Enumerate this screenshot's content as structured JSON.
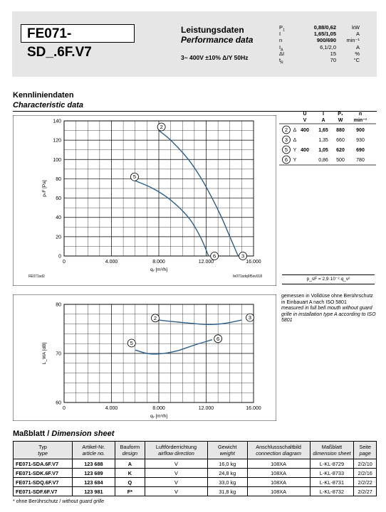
{
  "header": {
    "model": "FE071-SD_.6F.V7",
    "title_de": "Leistungsdaten",
    "title_en": "Performance data",
    "voltage": "3~ 400V ±10% Δ/Y 50Hz",
    "params": [
      {
        "symbol": "P",
        "sub": "1",
        "value": "0,88/0,62",
        "unit": "kW"
      },
      {
        "symbol": "I",
        "sub": "",
        "value": "1,65/1,05",
        "unit": "A"
      },
      {
        "symbol": "n",
        "sub": "",
        "value": "900/690",
        "unit": "min⁻¹"
      },
      {
        "symbol": "I",
        "sub": "A",
        "value": "6,1/2,0",
        "value_bold": false,
        "unit": "A"
      },
      {
        "symbol": "ΔI",
        "sub": "",
        "value": "15",
        "value_bold": false,
        "unit": "%"
      },
      {
        "symbol": "t",
        "sub": "R",
        "value": "70",
        "value_bold": false,
        "unit": "°C"
      }
    ]
  },
  "section1": {
    "title_de": "Kennliniendaten",
    "title_en": "Characteristic data"
  },
  "chart_data": [
    {
      "type": "line",
      "ylabel": "pₛF [Pa]",
      "xlabel": "qᵥ [m³/h]",
      "xlim": [
        0,
        16000
      ],
      "ylim": [
        0,
        140
      ],
      "xticks": [
        "0",
        "4.000",
        "8.000",
        "12.000",
        "16.000"
      ],
      "yticks": [
        "0",
        "20",
        "40",
        "60",
        "80",
        "100",
        "120",
        "140"
      ],
      "footnote_left": "FE071sd2",
      "footnote_right": "fe071sdq6f5xv018",
      "series": [
        {
          "name": "2",
          "points": [
            [
              8000,
              130
            ],
            [
              9000,
              120
            ],
            [
              10500,
              100
            ],
            [
              11600,
              80
            ],
            [
              12500,
              60
            ],
            [
              13300,
              40
            ],
            [
              14000,
              20
            ],
            [
              14700,
              0
            ]
          ]
        },
        {
          "name": "5",
          "points": [
            [
              6000,
              78
            ],
            [
              7500,
              70
            ],
            [
              9000,
              58
            ],
            [
              10500,
              40
            ],
            [
              11500,
              20
            ],
            [
              12200,
              0
            ]
          ]
        },
        {
          "name": "3",
          "points": [
            [
              14700,
              0
            ]
          ]
        },
        {
          "name": "6",
          "points": [
            [
              12200,
              0
            ]
          ]
        }
      ]
    },
    {
      "type": "line",
      "ylabel": "L_WA [dB]",
      "xlabel": "qᵥ [m³/h]",
      "xlim": [
        0,
        16000
      ],
      "ylim": [
        60,
        80
      ],
      "xticks": [
        "0",
        "4.000",
        "8.000",
        "12.000",
        "16.000"
      ],
      "yticks": [
        "60",
        "70",
        "80"
      ],
      "series": [
        {
          "name": "2",
          "points": [
            [
              8000,
              76.8
            ],
            [
              10000,
              76.3
            ],
            [
              12000,
              75.9
            ],
            [
              13500,
              76.1
            ],
            [
              15000,
              76.8
            ]
          ]
        },
        {
          "name": "5",
          "points": [
            [
              6000,
              70.7
            ],
            [
              7000,
              70.0
            ],
            [
              8000,
              69.9
            ],
            [
              9500,
              70.5
            ],
            [
              11000,
              71.7
            ],
            [
              12500,
              72.8
            ]
          ]
        }
      ]
    }
  ],
  "labels": [
    {
      "id": "2",
      "label": "2"
    },
    {
      "id": "3",
      "label": "3"
    },
    {
      "id": "5",
      "label": "5"
    },
    {
      "id": "6",
      "label": "6"
    }
  ],
  "optable": {
    "headers": [
      "U",
      "I",
      "P₁",
      "n"
    ],
    "units": [
      "V",
      "A",
      "W",
      "min⁻¹"
    ],
    "rows": [
      {
        "id": "2",
        "conn": "Δ",
        "U": "400",
        "I": "1,65",
        "P": "880",
        "n": "900",
        "bold": true
      },
      {
        "id": "3",
        "conn": "Δ",
        "U": "",
        "I": "1,35",
        "P": "660",
        "n": "930",
        "bold": false
      },
      {
        "id": "5",
        "conn": "Y",
        "U": "400",
        "I": "1,05",
        "P": "620",
        "n": "690",
        "bold": true
      },
      {
        "id": "6",
        "conn": "Y",
        "U": "",
        "I": "0,86",
        "P": "500",
        "n": "780",
        "bold": false
      }
    ]
  },
  "formula": "p_sF = 2,9·10⁻²·q_v²",
  "measure_note": {
    "de": "gemessen in Volldüse ohne Berührschutz in Einbauart A nach ISO 5801",
    "en": "measured in full bell mouth without guard grille in installation type A according to ISO 5801"
  },
  "section2": {
    "title_de": "Maßblatt / ",
    "title_en": "Dimension sheet"
  },
  "dimtable": {
    "headers": [
      {
        "de": "Typ",
        "en": "type"
      },
      {
        "de": "Artikel-Nr.",
        "en": "article no."
      },
      {
        "de": "Bauform",
        "en": "design"
      },
      {
        "de": "Luftförderrichtung",
        "en": "airflow direction"
      },
      {
        "de": "Gewicht",
        "en": "weight"
      },
      {
        "de": "Anschlussschaltbild",
        "en": "connection diagram"
      },
      {
        "de": "Maßblatt",
        "en": "dimension sheet"
      },
      {
        "de": "Seite",
        "en": "page"
      }
    ],
    "rows": [
      [
        "FE071-SDA.6F.V7",
        "123 688",
        "A",
        "V",
        "16,0 kg",
        "108XA",
        "L-KL-8729",
        "2/2/10"
      ],
      [
        "FE071-SDK.6F.V7",
        "123 689",
        "K",
        "V",
        "24,8 kg",
        "108XA",
        "L-KL-8733",
        "2/2/16"
      ],
      [
        "FE071-SDQ.6F.V7",
        "123 684",
        "Q",
        "V",
        "33,0 kg",
        "108XA",
        "L-KL-8731",
        "2/2/22"
      ],
      [
        "FE071-SDF.6F.V7",
        "123 981",
        "F*",
        "V",
        "31,8 kg",
        "108XA",
        "L-KL-8732",
        "2/2/27"
      ]
    ]
  },
  "footnote": {
    "de": "* ohne Berührschutz / ",
    "en": "without guard grille"
  }
}
